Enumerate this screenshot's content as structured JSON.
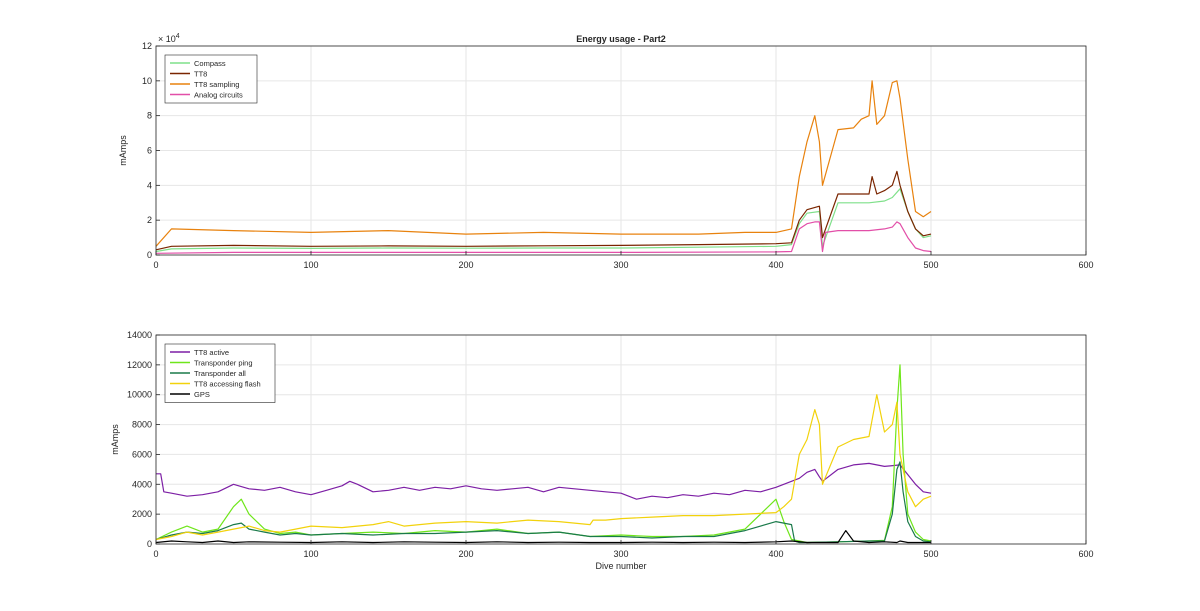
{
  "chart_data": [
    {
      "type": "line",
      "title": "Energy usage - Part2",
      "xlabel": "",
      "ylabel": "mAmps",
      "xlim": [
        0,
        600
      ],
      "ylim": [
        0,
        120000
      ],
      "exponent_label": "× 10",
      "exponent": "4",
      "x_ticks": [
        0,
        100,
        200,
        300,
        400,
        500,
        600
      ],
      "y_ticks": [
        0,
        20000,
        40000,
        60000,
        80000,
        100000,
        120000
      ],
      "y_tick_labels": [
        "0",
        "2",
        "4",
        "6",
        "8",
        "10",
        "12"
      ],
      "grid": true,
      "legend_position": "top-left",
      "series": [
        {
          "name": "Compass",
          "color": "#7fe08a",
          "x": [
            0,
            10,
            50,
            100,
            150,
            200,
            250,
            300,
            350,
            400,
            410,
            415,
            420,
            428,
            430,
            440,
            460,
            470,
            475,
            480,
            485,
            490,
            495,
            500
          ],
          "y": [
            2000,
            3500,
            4000,
            3800,
            4000,
            3900,
            4000,
            4000,
            4500,
            5000,
            6000,
            18000,
            24000,
            25000,
            5000,
            30000,
            30000,
            31000,
            33000,
            38000,
            25000,
            15000,
            10000,
            11000
          ]
        },
        {
          "name": "TT8",
          "color": "#7a2500",
          "x": [
            0,
            10,
            50,
            100,
            150,
            200,
            250,
            300,
            350,
            400,
            410,
            415,
            420,
            428,
            430,
            440,
            460,
            462,
            465,
            470,
            475,
            478,
            480,
            485,
            490,
            495,
            500
          ],
          "y": [
            3000,
            5000,
            5500,
            5000,
            5200,
            5000,
            5300,
            5500,
            6000,
            6500,
            7000,
            20000,
            26000,
            28000,
            10000,
            35000,
            35000,
            45000,
            35000,
            37000,
            40000,
            48000,
            40000,
            25000,
            15000,
            11000,
            12000
          ]
        },
        {
          "name": "TT8 sampling",
          "color": "#e8820e",
          "x": [
            0,
            10,
            50,
            100,
            150,
            200,
            250,
            300,
            350,
            380,
            400,
            410,
            415,
            420,
            425,
            428,
            430,
            440,
            450,
            455,
            460,
            462,
            465,
            470,
            475,
            478,
            480,
            485,
            490,
            495,
            500
          ],
          "y": [
            5000,
            15000,
            14000,
            13000,
            14000,
            12000,
            13000,
            12000,
            12000,
            13000,
            13000,
            15000,
            45000,
            65000,
            80000,
            65000,
            40000,
            72000,
            73000,
            78000,
            80000,
            100000,
            75000,
            80000,
            99000,
            100000,
            90000,
            55000,
            25000,
            22000,
            25000
          ]
        },
        {
          "name": "Analog circuits",
          "color": "#e24fa8",
          "x": [
            0,
            50,
            100,
            200,
            300,
            400,
            410,
            415,
            420,
            425,
            428,
            430,
            432,
            440,
            460,
            470,
            475,
            478,
            480,
            485,
            490,
            495,
            500
          ],
          "y": [
            1000,
            1500,
            1500,
            1500,
            1500,
            1800,
            2000,
            15000,
            18000,
            19000,
            19000,
            2000,
            13000,
            14000,
            14000,
            15000,
            16000,
            19000,
            18000,
            10000,
            4000,
            2500,
            2000
          ]
        }
      ]
    },
    {
      "type": "line",
      "title": "",
      "xlabel": "Dive number",
      "ylabel": "mAmps",
      "xlim": [
        0,
        600
      ],
      "ylim": [
        0,
        14000
      ],
      "x_ticks": [
        0,
        100,
        200,
        300,
        400,
        500,
        600
      ],
      "y_ticks": [
        0,
        2000,
        4000,
        6000,
        8000,
        10000,
        12000,
        14000
      ],
      "y_tick_labels": [
        "0",
        "2000",
        "4000",
        "6000",
        "8000",
        "10000",
        "12000",
        "14000"
      ],
      "grid": true,
      "legend_position": "top-left",
      "series": [
        {
          "name": "TT8 active",
          "color": "#7d1fa5",
          "x": [
            0,
            3,
            5,
            10,
            20,
            30,
            40,
            50,
            60,
            70,
            80,
            90,
            100,
            110,
            120,
            125,
            130,
            140,
            150,
            160,
            170,
            180,
            190,
            200,
            210,
            220,
            230,
            240,
            250,
            260,
            270,
            280,
            290,
            300,
            310,
            320,
            330,
            340,
            350,
            360,
            370,
            380,
            390,
            400,
            410,
            415,
            420,
            425,
            428,
            430,
            440,
            450,
            460,
            470,
            480,
            490,
            495,
            500
          ],
          "y": [
            4700,
            4700,
            3500,
            3400,
            3200,
            3300,
            3500,
            4000,
            3700,
            3600,
            3800,
            3500,
            3300,
            3600,
            3900,
            4200,
            4000,
            3500,
            3600,
            3800,
            3600,
            3800,
            3700,
            3900,
            3700,
            3600,
            3700,
            3800,
            3500,
            3800,
            3700,
            3600,
            3500,
            3400,
            3000,
            3200,
            3100,
            3300,
            3200,
            3400,
            3300,
            3600,
            3500,
            3800,
            4200,
            4400,
            4800,
            5000,
            4500,
            4200,
            5000,
            5300,
            5400,
            5200,
            5300,
            4000,
            3500,
            3400
          ]
        },
        {
          "name": "Transponder ping",
          "color": "#6fe61a",
          "x": [
            0,
            10,
            20,
            30,
            40,
            50,
            55,
            60,
            70,
            80,
            90,
            100,
            120,
            140,
            160,
            180,
            200,
            220,
            240,
            260,
            280,
            300,
            320,
            340,
            360,
            380,
            400,
            405,
            410,
            415,
            420,
            440,
            460,
            470,
            475,
            478,
            480,
            482,
            485,
            490,
            495,
            500
          ],
          "y": [
            300,
            800,
            1200,
            800,
            1000,
            2500,
            3000,
            2000,
            1000,
            700,
            800,
            600,
            700,
            800,
            700,
            900,
            800,
            1000,
            700,
            800,
            500,
            600,
            500,
            500,
            600,
            1000,
            3000,
            1500,
            300,
            200,
            100,
            150,
            200,
            250,
            2500,
            9000,
            12000,
            6000,
            2000,
            800,
            300,
            200
          ]
        },
        {
          "name": "Transponder all",
          "color": "#1a7a4a",
          "x": [
            0,
            10,
            20,
            30,
            40,
            50,
            55,
            60,
            70,
            80,
            90,
            100,
            120,
            140,
            160,
            180,
            200,
            220,
            240,
            260,
            280,
            300,
            320,
            340,
            360,
            380,
            400,
            405,
            410,
            412,
            415,
            420,
            440,
            460,
            470,
            475,
            478,
            480,
            482,
            485,
            490,
            495,
            500
          ],
          "y": [
            300,
            600,
            800,
            700,
            900,
            1300,
            1400,
            1000,
            800,
            600,
            700,
            600,
            700,
            600,
            700,
            700,
            800,
            900,
            700,
            800,
            500,
            500,
            400,
            500,
            500,
            900,
            1500,
            1400,
            1300,
            200,
            100,
            100,
            150,
            200,
            200,
            2000,
            5000,
            5500,
            3500,
            1500,
            500,
            200,
            150
          ]
        },
        {
          "name": "TT8 accessing flash",
          "color": "#f2d20c",
          "x": [
            0,
            10,
            20,
            30,
            40,
            50,
            60,
            70,
            80,
            90,
            100,
            120,
            140,
            150,
            160,
            180,
            200,
            220,
            240,
            260,
            280,
            282,
            290,
            300,
            320,
            340,
            360,
            380,
            400,
            405,
            410,
            415,
            420,
            425,
            428,
            430,
            440,
            450,
            460,
            465,
            470,
            475,
            478,
            480,
            485,
            490,
            495,
            500
          ],
          "y": [
            300,
            500,
            800,
            600,
            800,
            1000,
            1200,
            900,
            800,
            1000,
            1200,
            1100,
            1300,
            1500,
            1200,
            1400,
            1500,
            1400,
            1600,
            1500,
            1300,
            1600,
            1600,
            1700,
            1800,
            1900,
            1900,
            2000,
            2100,
            2500,
            3000,
            6000,
            7000,
            9000,
            8000,
            4000,
            6500,
            7000,
            7200,
            10000,
            7500,
            8000,
            9500,
            6000,
            3500,
            2500,
            3000,
            3200
          ]
        },
        {
          "name": "GPS",
          "color": "#000000",
          "x": [
            0,
            10,
            20,
            30,
            40,
            50,
            60,
            80,
            100,
            120,
            140,
            160,
            180,
            200,
            220,
            240,
            260,
            280,
            300,
            320,
            340,
            360,
            380,
            400,
            410,
            420,
            440,
            445,
            450,
            460,
            470,
            478,
            480,
            485,
            490,
            500
          ],
          "y": [
            100,
            200,
            150,
            100,
            200,
            100,
            150,
            120,
            100,
            150,
            100,
            150,
            120,
            100,
            150,
            100,
            120,
            100,
            100,
            120,
            100,
            120,
            100,
            150,
            200,
            100,
            100,
            900,
            200,
            100,
            150,
            100,
            200,
            100,
            100,
            100
          ]
        }
      ]
    }
  ]
}
